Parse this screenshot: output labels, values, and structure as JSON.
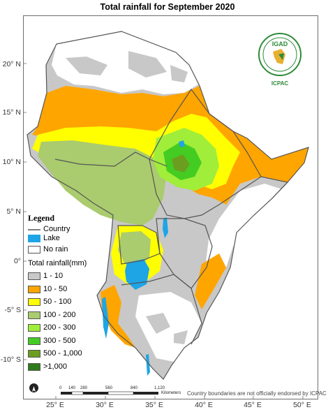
{
  "title": "Total rainfall for September  2020",
  "y_ticks": [
    "20° N",
    "15° N",
    "10° N",
    "5° N",
    "0°",
    "-5° S",
    "-10° S"
  ],
  "x_ticks": [
    "25° E",
    "30° E",
    "35° E",
    "40° E",
    "45° E",
    "50° E"
  ],
  "legend": {
    "title": "Legend",
    "country": "Country",
    "lake": "Lake",
    "no_rain": "No rain",
    "rainfall_title": "Total rainfall(mm)",
    "classes": [
      {
        "label": "1 - 10",
        "color": "#c8c8c8"
      },
      {
        "label": "10 - 50",
        "color": "#ffa500"
      },
      {
        "label": "50 - 100",
        "color": "#ffff00"
      },
      {
        "label": "100 - 200",
        "color": "#aacb6e"
      },
      {
        "label": "200 - 300",
        "color": "#a0ee3a"
      },
      {
        "label": "300 - 500",
        "color": "#44cc22"
      },
      {
        "label": "500 - 1,000",
        "color": "#6b9e1f"
      },
      {
        "label": ">1,000",
        "color": "#2f7a1a"
      }
    ],
    "lake_color": "#1ea5e6",
    "no_rain_color": "#ffffff"
  },
  "logo": {
    "name": "IGAD",
    "org": "ICPAC"
  },
  "scale": {
    "ticks": [
      "0",
      "140",
      "280",
      "560",
      "840",
      "1,120"
    ],
    "unit": "Kilometers"
  },
  "disclaimer": "Country boundaries are not officially endorsed by ICPAC"
}
